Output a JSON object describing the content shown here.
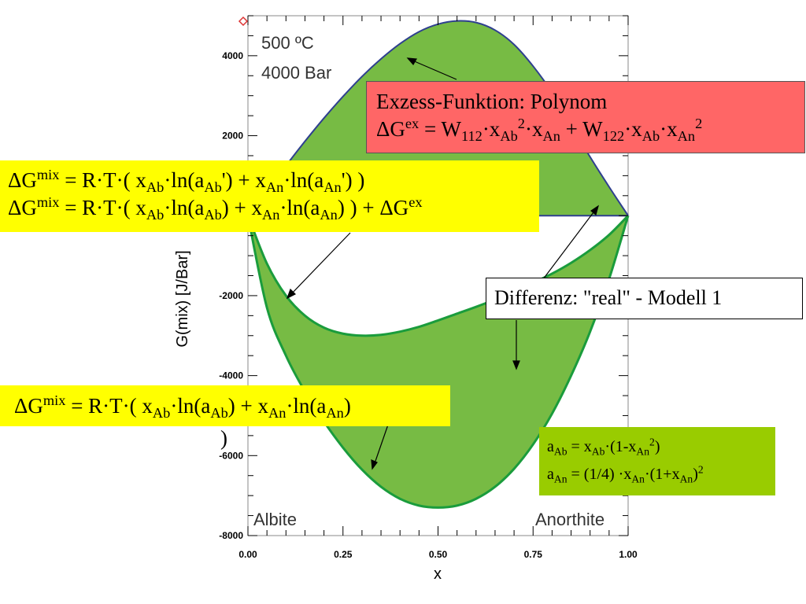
{
  "chart_data": {
    "type": "area",
    "xlabel": "x",
    "ylabel": "G(mix) [J/Bar]",
    "xlim": [
      0,
      1
    ],
    "ylim": [
      -8000,
      5000
    ],
    "x_ticks": [
      0,
      0.25,
      0.5,
      0.75,
      1.0
    ],
    "x_tick_labels": [
      "0.00",
      "0.25",
      "0.50",
      "0.75",
      "1.00"
    ],
    "y_ticks": [
      -8000,
      -6000,
      -4000,
      -2000,
      2000,
      4000
    ],
    "y_tick_labels": [
      "-8000",
      "-6000",
      "-4000",
      "-2000",
      "2000",
      "4000"
    ],
    "annotations": [
      "500 ºC",
      "4000 Bar",
      "Albite",
      "Anorthite"
    ],
    "series": [
      {
        "x": [
          0,
          0.05,
          0.1,
          0.15,
          0.2,
          0.25,
          0.3,
          0.35,
          0.4,
          0.45,
          0.5,
          0.55,
          0.6,
          0.65,
          0.7,
          0.75,
          0.8,
          0.85,
          0.9,
          0.95,
          1.0
        ],
        "values": [
          0,
          630,
          1250,
          1860,
          2440,
          2980,
          3480,
          3920,
          4300,
          4600,
          4790,
          4870,
          4830,
          4640,
          4280,
          3740,
          3080,
          2270,
          1470,
          720,
          0
        ]
      },
      {
        "x": [
          0,
          0.05,
          0.1,
          0.15,
          0.2,
          0.25,
          0.3,
          0.35,
          0.4,
          0.45,
          0.5,
          0.55,
          0.6,
          0.65,
          0.7,
          0.75,
          0.8,
          0.85,
          0.9,
          0.95,
          1.0
        ],
        "values": [
          0,
          -1200,
          -2000,
          -2500,
          -2800,
          -2950,
          -3000,
          -2980,
          -2900,
          -2780,
          -2620,
          -2450,
          -2280,
          -2100,
          -1900,
          -1680,
          -1450,
          -1180,
          -860,
          -480,
          0
        ]
      },
      {
        "x": [
          0,
          0.05,
          0.1,
          0.15,
          0.2,
          0.25,
          0.3,
          0.35,
          0.4,
          0.45,
          0.5,
          0.55,
          0.6,
          0.65,
          0.7,
          0.75,
          0.8,
          0.85,
          0.9,
          0.95,
          1.0
        ],
        "values": [
          0,
          -2300,
          -3500,
          -4400,
          -5150,
          -5800,
          -6350,
          -6780,
          -7080,
          -7250,
          -7300,
          -7250,
          -7080,
          -6780,
          -6330,
          -5720,
          -4950,
          -4000,
          -2900,
          -1580,
          0
        ]
      }
    ],
    "colors": {
      "upper_line": "#2e3f8f",
      "lower_line": "#1a9c3c",
      "fill": "#77bb44",
      "zero_line": "#2e3f8f"
    }
  },
  "callouts": {
    "excess": {
      "line1": "Exzess-Funktion: Polynom",
      "line2": {
        "dg": "ΔG",
        "ex": "ex",
        "eq": " = W",
        "s112": "112",
        "x1": "·x",
        "ab": "Ab",
        "p2a": "2",
        "x2": "·x",
        "an": "An",
        "plus": " + W",
        "s122": "122",
        "x3": "·x",
        "ab2": "Ab",
        "x4": "·x",
        "an2": "An",
        "p2b": "2"
      }
    },
    "mix_real": {
      "line1": {
        "dg": "ΔG",
        "mix": "mix",
        "eq": " = R·T·( x",
        "ab": "Ab",
        "ln1": "·ln(a",
        "ab2": "Ab",
        "p1": "') + x",
        "an": "An",
        "ln2": "·ln(a",
        "an2": "An",
        "p2": "') )"
      },
      "line2": {
        "dg": "ΔG",
        "mix": "mix",
        "eq": " = R·T·( x",
        "ab": "Ab",
        "ln1": "·ln(a",
        "ab2": "Ab",
        "p1": ") + x",
        "an": "An",
        "ln2": "·ln(a",
        "an2": "An",
        "p2": ") ) + ΔG",
        "ex": "ex"
      }
    },
    "difference": {
      "text": "Differenz: \"real\" - Modell 1"
    },
    "ideal": {
      "dg": "ΔG",
      "mix": "mix",
      "eq": " = R·T·( x",
      "ab": "Ab",
      "ln1": "·ln(a",
      "ab2": "Ab",
      "p1": ") + x",
      "an": "An",
      "ln2": "·ln(a",
      "an2": "An",
      "p2": ")",
      "tail": ")"
    },
    "activity": {
      "line1": {
        "a": "a",
        "ab": "Ab",
        "eq": " = x",
        "ab2": "Ab",
        "rest": "·(1-x",
        "an": "An",
        "p2": "2",
        "close": ")"
      },
      "line2": {
        "a": "a",
        "an": "An",
        "eq": " = (1/4) ·x",
        "an2": "An",
        "rest": "·(1+x",
        "an3": "An",
        "close": ")",
        "p2": "2"
      }
    }
  }
}
